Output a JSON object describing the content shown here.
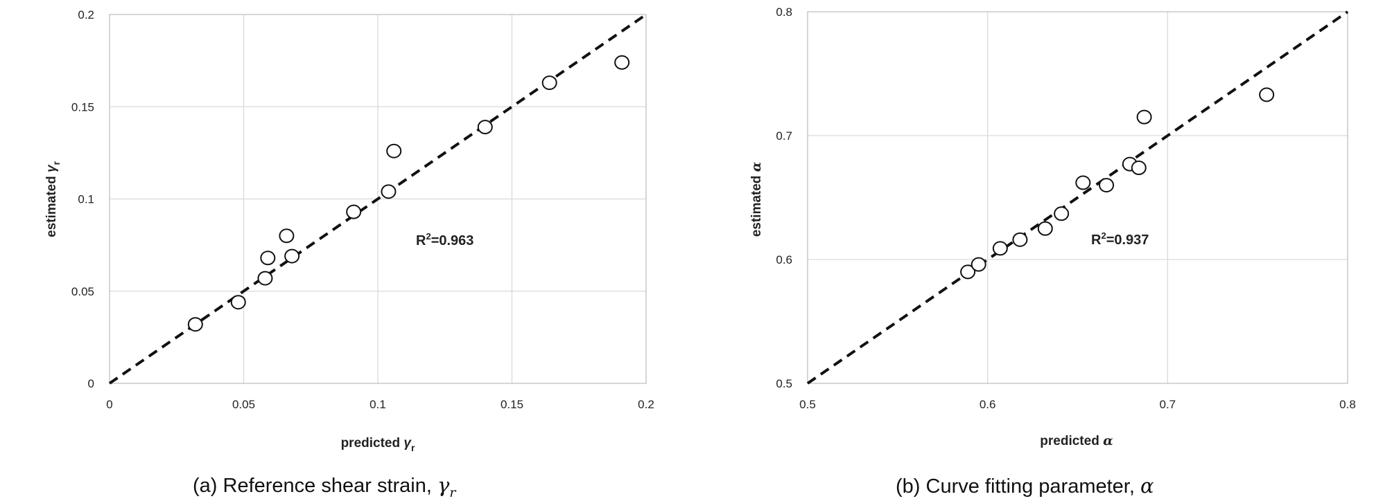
{
  "chart_data": [
    {
      "type": "scatter",
      "xlabel": "predicted",
      "xlabel_symbol": "γ",
      "xlabel_sub": "r",
      "ylabel": "estimated",
      "ylabel_symbol": "γ",
      "ylabel_sub": "r",
      "xlim": [
        0,
        0.2
      ],
      "ylim": [
        0,
        0.2
      ],
      "xticks": [
        "0",
        "0.05",
        "0.1",
        "0.15",
        "0.2"
      ],
      "yticks": [
        "0",
        "0.05",
        "0.1",
        "0.15",
        "0.2"
      ],
      "grid": true,
      "points": [
        {
          "x": 0.032,
          "y": 0.032
        },
        {
          "x": 0.048,
          "y": 0.044
        },
        {
          "x": 0.058,
          "y": 0.057
        },
        {
          "x": 0.059,
          "y": 0.068
        },
        {
          "x": 0.066,
          "y": 0.08
        },
        {
          "x": 0.068,
          "y": 0.069
        },
        {
          "x": 0.091,
          "y": 0.093
        },
        {
          "x": 0.104,
          "y": 0.104
        },
        {
          "x": 0.106,
          "y": 0.126
        },
        {
          "x": 0.14,
          "y": 0.139
        },
        {
          "x": 0.164,
          "y": 0.163
        },
        {
          "x": 0.191,
          "y": 0.174
        }
      ],
      "fit_line": {
        "x": [
          0,
          0.2
        ],
        "y": [
          0,
          0.2
        ],
        "style": "dashed"
      },
      "annotation": {
        "prefix": "R",
        "sup": "2",
        "value": "=0.963"
      },
      "caption": {
        "text": "(a) Reference shear strain,",
        "symbol": "γ",
        "sub": "r"
      }
    },
    {
      "type": "scatter",
      "xlabel": "predicted",
      "xlabel_symbol": "α",
      "ylabel": "estimated",
      "ylabel_symbol": "α",
      "xlim": [
        0.5,
        0.8
      ],
      "ylim": [
        0.5,
        0.8
      ],
      "xticks": [
        "0.5",
        "0.6",
        "0.7",
        "0.8"
      ],
      "yticks": [
        "0.5",
        "0.6",
        "0.7",
        "0.8"
      ],
      "grid": true,
      "points": [
        {
          "x": 0.589,
          "y": 0.59
        },
        {
          "x": 0.595,
          "y": 0.596
        },
        {
          "x": 0.607,
          "y": 0.609
        },
        {
          "x": 0.618,
          "y": 0.616
        },
        {
          "x": 0.632,
          "y": 0.625
        },
        {
          "x": 0.641,
          "y": 0.637
        },
        {
          "x": 0.653,
          "y": 0.662
        },
        {
          "x": 0.666,
          "y": 0.66
        },
        {
          "x": 0.679,
          "y": 0.677
        },
        {
          "x": 0.684,
          "y": 0.674
        },
        {
          "x": 0.687,
          "y": 0.715
        },
        {
          "x": 0.755,
          "y": 0.733
        }
      ],
      "fit_line": {
        "x": [
          0.5,
          0.8
        ],
        "y": [
          0.5,
          0.8
        ],
        "style": "dashed"
      },
      "annotation": {
        "prefix": "R",
        "sup": "2",
        "value": "=0.937"
      },
      "caption": {
        "text": "(b) Curve fitting parameter,",
        "symbol": "α"
      }
    }
  ]
}
